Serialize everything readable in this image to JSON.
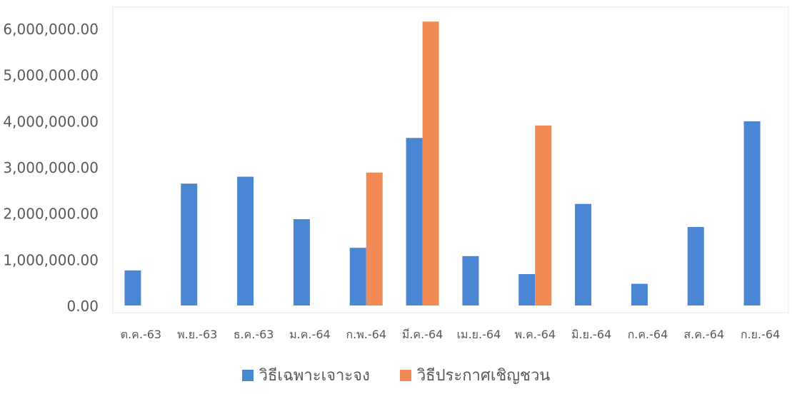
{
  "chart_data": {
    "type": "bar",
    "title": "",
    "xlabel": "",
    "ylabel": "",
    "ylim": [
      0,
      6000000
    ],
    "y_ticks": [
      "0.00",
      "1,000,000.00",
      "2,000,000.00",
      "3,000,000.00",
      "4,000,000.00",
      "5,000,000.00",
      "6,000,000.00"
    ],
    "categories": [
      "ต.ค.-63",
      "พ.ย.-63",
      "ธ.ค.-63",
      "ม.ค.-64",
      "ก.พ.-64",
      "มี.ค.-64",
      "เม.ย.-64",
      "พ.ค.-64",
      "มิ.ย.-64",
      "ก.ค.-64",
      "ส.ค.-64",
      "ก.ย.-64"
    ],
    "series": [
      {
        "name": "วิธีเฉพาะเจาะจง",
        "color": "#4a86d4",
        "values": [
          760000,
          2640000,
          2790000,
          1870000,
          1250000,
          3630000,
          1070000,
          680000,
          2200000,
          470000,
          1700000,
          3990000
        ]
      },
      {
        "name": "วิธีประกาศเชิญชวน",
        "color": "#f28a55",
        "values": [
          0,
          0,
          0,
          0,
          2880000,
          6150000,
          0,
          3900000,
          0,
          0,
          0,
          0
        ]
      }
    ],
    "grid": false,
    "legend_position": "bottom"
  }
}
